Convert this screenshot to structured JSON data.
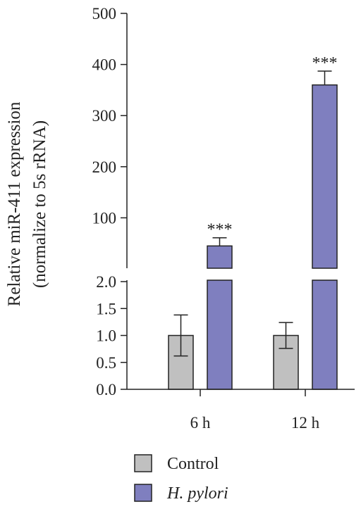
{
  "chart_data": {
    "type": "bar",
    "categories": [
      "6 h",
      "12 h"
    ],
    "series": [
      {
        "name": "Control",
        "values": [
          1.0,
          1.0
        ],
        "errors": [
          0.38,
          0.24
        ],
        "color": "#c0c0c0"
      },
      {
        "name": "H. pylori",
        "values": [
          45,
          360
        ],
        "errors": [
          16,
          27
        ],
        "color": "#7f7fbf"
      }
    ],
    "ylabel_line1": "Relative miR-411 expression",
    "ylabel_line2": "(normalize to 5s rRNA)",
    "y_axis_broken": true,
    "lower_segment": {
      "ylim": [
        0,
        2.0
      ],
      "ticks": [
        "0.0",
        "0.5",
        "1.0",
        "1.5",
        "2.0"
      ]
    },
    "upper_segment": {
      "ylim": [
        0,
        500
      ],
      "ticks": [
        "100",
        "200",
        "300",
        "400",
        "500"
      ]
    },
    "significance": [
      {
        "category": "6 h",
        "series": "H. pylori",
        "label": "***"
      },
      {
        "category": "12 h",
        "series": "H. pylori",
        "label": "***"
      }
    ],
    "legend": {
      "position": "bottom"
    },
    "grid": false
  }
}
